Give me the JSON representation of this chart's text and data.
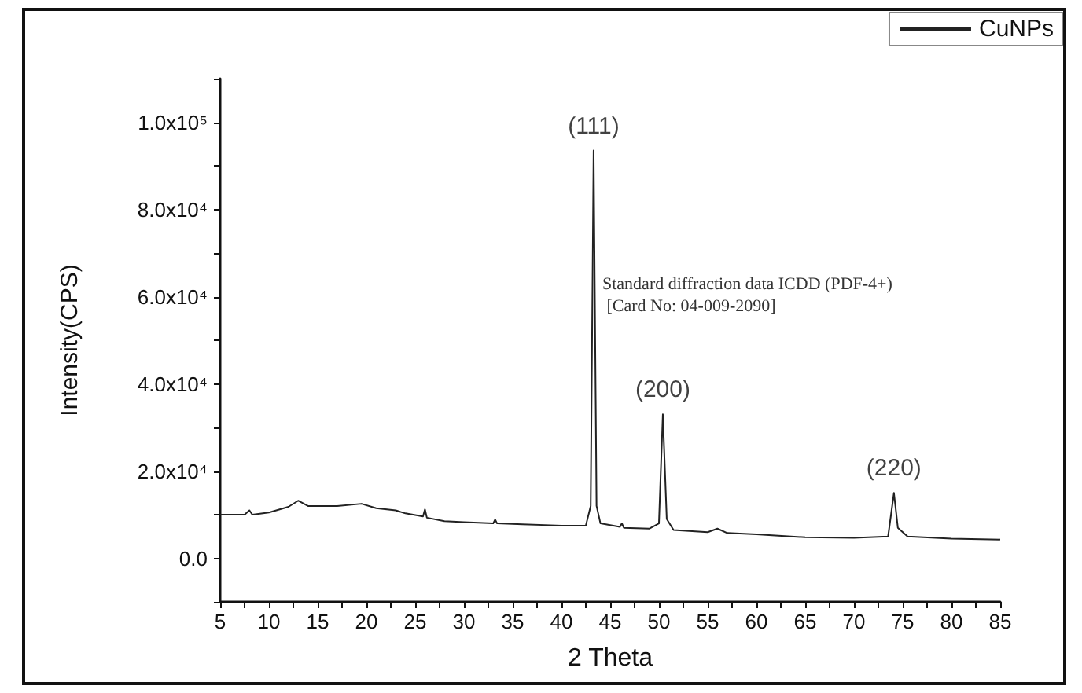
{
  "chart_data": {
    "type": "line",
    "xlabel": "2 Theta",
    "ylabel": "Intensity(CPS)",
    "xlim": [
      5,
      85
    ],
    "xticks": [
      5,
      {
        "value": 7.5,
        "label": null
      },
      10,
      {
        "value": 12.5,
        "label": null
      },
      15,
      {
        "value": 17.5,
        "label": null
      },
      20,
      {
        "value": 22.5,
        "label": null
      },
      25,
      {
        "value": 27.5,
        "label": null
      },
      30,
      {
        "value": 32.5,
        "label": null
      },
      35,
      {
        "value": 37.5,
        "label": null
      },
      40,
      {
        "value": 42.5,
        "label": null
      },
      45,
      {
        "value": 47.5,
        "label": null
      },
      50,
      {
        "value": 52.5,
        "label": null
      },
      55,
      {
        "value": 57.5,
        "label": null
      },
      60,
      {
        "value": 62.5,
        "label": null
      },
      65,
      {
        "value": 67.5,
        "label": null
      },
      70,
      {
        "value": 72.5,
        "label": null
      },
      75,
      {
        "value": 77.5,
        "label": null
      },
      80,
      {
        "value": 82.5,
        "label": null
      },
      85
    ],
    "ylim": [
      -10000,
      110000
    ],
    "yticks": [
      {
        "value": -10000,
        "label": null
      },
      {
        "value": 0,
        "label": "0.0"
      },
      {
        "value": 10000,
        "label": null
      },
      {
        "value": 20000,
        "label": "2.0x10⁴"
      },
      {
        "value": 30000,
        "label": null
      },
      {
        "value": 40000,
        "label": "4.0x10⁴"
      },
      {
        "value": 50000,
        "label": null
      },
      {
        "value": 60000,
        "label": "6.0x10⁴"
      },
      {
        "value": 70000,
        "label": null
      },
      {
        "value": 80000,
        "label": "8.0x10⁴"
      },
      {
        "value": 90000,
        "label": null
      },
      {
        "value": 100000,
        "label": "1.0x10⁵"
      },
      {
        "value": 110000,
        "label": null
      }
    ],
    "grid": false,
    "legend": "top right",
    "marker": "none",
    "line_style": "solid",
    "x": [
      5,
      7.5,
      8,
      8.3,
      10,
      12,
      13,
      14,
      17,
      19.5,
      21,
      23,
      24,
      25.8,
      26,
      26.2,
      28,
      30,
      33,
      33.2,
      33.4,
      36,
      40,
      42.5,
      43,
      43.3,
      43.6,
      44,
      46,
      46.2,
      46.4,
      49,
      50,
      50.4,
      50.8,
      51.5,
      55,
      56,
      57,
      60,
      65,
      70,
      73.5,
      74.1,
      74.5,
      75.5,
      80,
      85
    ],
    "series": [
      {
        "name": "CuNPs",
        "color": "#222222",
        "values": [
          10000,
          10000,
          11000,
          10000,
          10500,
          11800,
          13200,
          12000,
          12000,
          12500,
          11500,
          11000,
          10300,
          9600,
          11200,
          9300,
          8500,
          8300,
          8000,
          8900,
          8000,
          7800,
          7500,
          7500,
          12000,
          93500,
          12000,
          8000,
          7200,
          8000,
          7000,
          6800,
          8000,
          33000,
          9000,
          6500,
          6000,
          6800,
          5800,
          5500,
          4800,
          4700,
          5000,
          15000,
          7000,
          5000,
          4500,
          4300
        ]
      }
    ],
    "annotations": [
      {
        "text": "(111)",
        "x": 43.3,
        "y": 93500
      },
      {
        "text": "(200)",
        "x": 50.4,
        "y": 33000
      },
      {
        "text": "(220)",
        "x": 74.1,
        "y": 15000
      },
      "Standard diffraction data ICDD (PDF-4+)\n [Card No: 04-009-2090]"
    ]
  }
}
